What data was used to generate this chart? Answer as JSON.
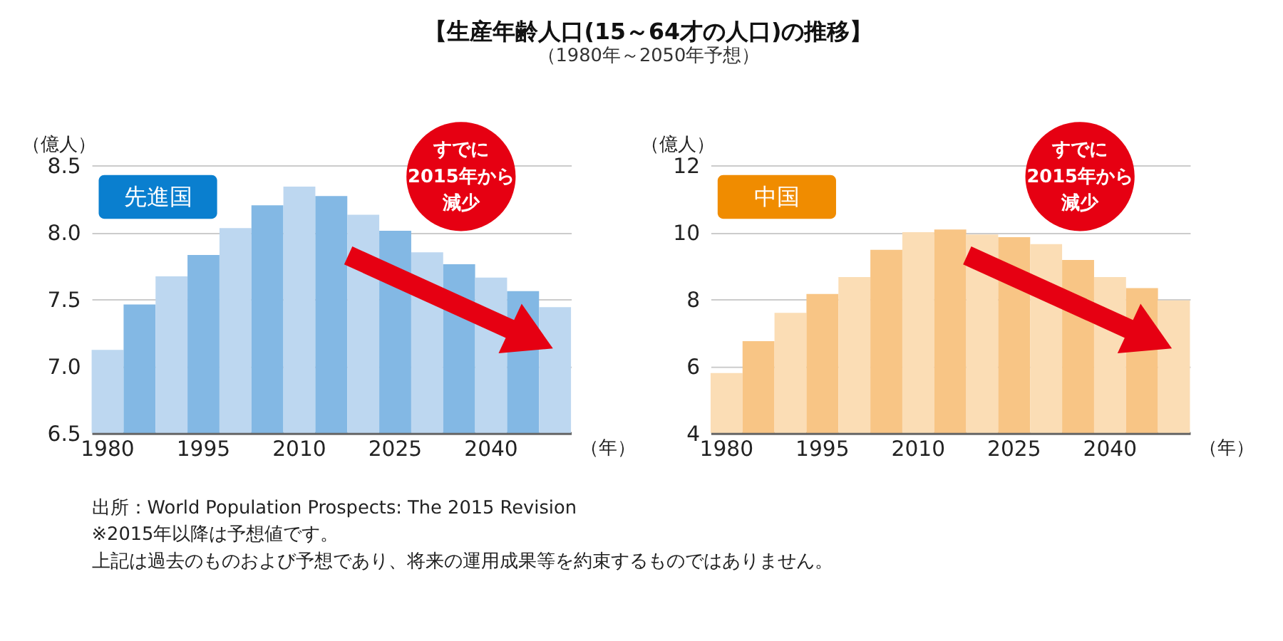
{
  "chart_data": [
    {
      "type": "other",
      "title": "【生産年齢人口(15～64才の人口)の推移】",
      "subtitle": "（1980年～2050年予想）",
      "annotations": [
        "出所：World Population Prospects: The 2015 Revision",
        "※2015年以降は予想値です。",
        "上記は過去のものおよび予想であり、将来の運用成果等を約束するものではありません。"
      ]
    },
    {
      "type": "bar",
      "title": "先進国",
      "ylabel": "（億人）",
      "xlabel": "（年）",
      "categories": [
        "1980",
        null,
        null,
        "1995",
        null,
        null,
        "2010",
        null,
        null,
        "2025",
        null,
        null,
        "2040",
        null,
        null
      ],
      "values": [
        7.12,
        7.46,
        7.67,
        7.83,
        8.03,
        8.2,
        8.34,
        8.27,
        8.13,
        8.01,
        7.85,
        7.76,
        7.66,
        7.56,
        7.44
      ],
      "colors": [
        "#bdd7f0",
        "#83b8e4",
        "#bdd7f0",
        "#83b8e4",
        "#bdd7f0",
        "#83b8e4",
        "#bdd7f0",
        "#83b8e4",
        "#bdd7f0",
        "#83b8e4",
        "#bdd7f0",
        "#83b8e4",
        "#bdd7f0",
        "#83b8e4",
        "#bdd7f0"
      ],
      "ylim": [
        6.5,
        8.5
      ],
      "yticks": [
        {
          "value": 6.5,
          "label": "6.5"
        },
        {
          "value": 7,
          "label": "7.0"
        },
        {
          "value": 7.5,
          "label": "7.5"
        },
        {
          "value": 8,
          "label": "8.0"
        },
        {
          "value": 8.5,
          "label": "8.5"
        }
      ],
      "grid": "y",
      "annotations": [
        "すでに",
        "2015年から",
        "減少"
      ]
    },
    {
      "type": "bar",
      "title": "中国",
      "ylabel": "（億人）",
      "xlabel": "（年）",
      "categories": [
        "1980",
        null,
        null,
        "1995",
        null,
        null,
        "2010",
        null,
        null,
        "2025",
        null,
        null,
        "2040",
        null,
        null
      ],
      "values": [
        5.79,
        6.74,
        7.59,
        8.15,
        8.66,
        9.47,
        10.0,
        10.08,
        9.93,
        9.85,
        9.64,
        9.17,
        8.66,
        8.33,
        7.96
      ],
      "colors": [
        "#fbddb5",
        "#f8c585",
        "#fbddb5",
        "#f8c585",
        "#fbddb5",
        "#f8c585",
        "#fbddb5",
        "#f8c585",
        "#fbddb5",
        "#f8c585",
        "#fbddb5",
        "#f8c585",
        "#fbddb5",
        "#f8c585",
        "#fbddb5"
      ],
      "ylim": [
        4,
        12
      ],
      "yticks": [
        4,
        6,
        8,
        10,
        12
      ],
      "grid": "y",
      "annotations": [
        "すでに",
        "2015年から",
        "減少"
      ]
    }
  ]
}
